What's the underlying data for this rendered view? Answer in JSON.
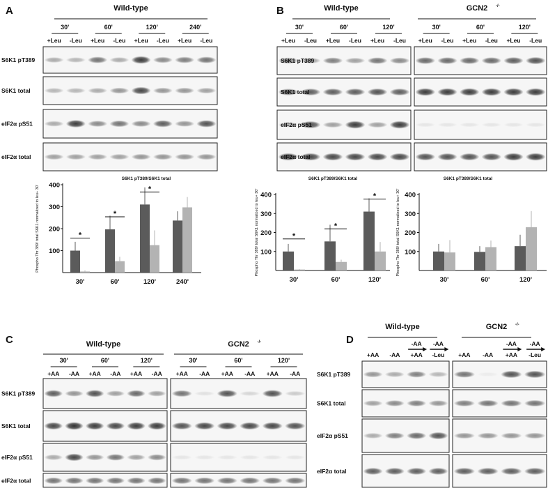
{
  "colors": {
    "plus_bar": "#5b5b5b",
    "minus_bar": "#b3b3b3",
    "band": "#1a1a1a"
  },
  "panels": {
    "A": {
      "label": "A",
      "groups": [
        {
          "title": "Wild-type",
          "times": [
            "30'",
            "60'",
            "120'",
            "240'"
          ],
          "lanes": [
            "+Leu",
            "-Leu",
            "+Leu",
            "-Leu",
            "+Leu",
            "-Leu",
            "+Leu",
            "-Leu"
          ],
          "band_intensity": [
            [
              0.35,
              0.3,
              0.6,
              0.35,
              0.85,
              0.5,
              0.55,
              0.6
            ],
            [
              0.3,
              0.3,
              0.35,
              0.45,
              0.8,
              0.45,
              0.45,
              0.4
            ],
            [
              0.35,
              0.85,
              0.5,
              0.6,
              0.5,
              0.7,
              0.45,
              0.75
            ],
            [
              0.4,
              0.4,
              0.4,
              0.4,
              0.45,
              0.45,
              0.45,
              0.45
            ]
          ]
        }
      ],
      "rows": [
        "S6K1 pT389",
        "S6K1 total",
        "eIF2α pS51",
        "eIF2α total"
      ]
    },
    "B": {
      "label": "B",
      "groups": [
        {
          "title": "Wild-type",
          "times": [
            "30'",
            "60'",
            "120'"
          ],
          "lanes": [
            "+Leu",
            "-Leu",
            "+Leu",
            "-Leu",
            "+Leu",
            "-Leu"
          ],
          "band_intensity": [
            [
              0.5,
              0.4,
              0.55,
              0.4,
              0.6,
              0.5
            ],
            [
              0.65,
              0.7,
              0.7,
              0.7,
              0.75,
              0.7
            ],
            [
              0.3,
              0.75,
              0.4,
              0.85,
              0.4,
              0.85
            ],
            [
              0.8,
              0.8,
              0.8,
              0.8,
              0.8,
              0.8
            ]
          ]
        },
        {
          "title": "GCN2",
          "title_sup": "-/-",
          "times": [
            "30'",
            "60'",
            "120'"
          ],
          "lanes": [
            "+Leu",
            "-Leu",
            "+Leu",
            "-Leu",
            "+Leu",
            "-Leu"
          ],
          "band_intensity": [
            [
              0.65,
              0.65,
              0.65,
              0.65,
              0.7,
              0.75
            ],
            [
              0.85,
              0.85,
              0.85,
              0.85,
              0.85,
              0.85
            ],
            [
              0.08,
              0.08,
              0.08,
              0.08,
              0.08,
              0.08
            ],
            [
              0.75,
              0.75,
              0.75,
              0.75,
              0.85,
              0.85
            ]
          ]
        }
      ],
      "rows": [
        "S6K1 pT389",
        "S6K1 total",
        "eIF2α pS51",
        "eIF2α total"
      ]
    },
    "C": {
      "label": "C",
      "groups": [
        {
          "title": "Wild-type",
          "times": [
            "30'",
            "60'",
            "120'"
          ],
          "lanes": [
            "+AA",
            "-AA",
            "+AA",
            "-AA",
            "+AA",
            "-AA"
          ],
          "band_intensity": [
            [
              0.7,
              0.45,
              0.75,
              0.4,
              0.65,
              0.4
            ],
            [
              0.8,
              0.9,
              0.85,
              0.8,
              0.85,
              0.85
            ],
            [
              0.35,
              0.8,
              0.45,
              0.6,
              0.4,
              0.5
            ],
            [
              0.6,
              0.6,
              0.6,
              0.6,
              0.6,
              0.6
            ]
          ]
        },
        {
          "title": "GCN2",
          "title_sup": "-/-",
          "times": [
            "30'",
            "60'",
            "120'"
          ],
          "lanes": [
            "+AA",
            "-AA",
            "+AA",
            "-AA",
            "+AA",
            "-AA"
          ],
          "band_intensity": [
            [
              0.6,
              0.1,
              0.75,
              0.15,
              0.75,
              0.2
            ],
            [
              0.75,
              0.8,
              0.8,
              0.8,
              0.8,
              0.75
            ],
            [
              0.08,
              0.08,
              0.08,
              0.08,
              0.08,
              0.08
            ],
            [
              0.6,
              0.6,
              0.6,
              0.6,
              0.6,
              0.6
            ]
          ]
        }
      ],
      "rows": [
        "S6K1 pT389",
        "S6K1 total",
        "eIF2α pS51",
        "eIF2α total"
      ]
    },
    "D": {
      "label": "D",
      "groups": [
        {
          "title": "Wild-type",
          "lanes": [
            "+AA",
            "-AA",
            "+AA",
            "-Leu"
          ],
          "lanes_top": [
            "",
            "",
            "-AA",
            "-AA"
          ],
          "band_intensity": [
            [
              0.45,
              0.35,
              0.55,
              0.3
            ],
            [
              0.4,
              0.5,
              0.55,
              0.45
            ],
            [
              0.35,
              0.55,
              0.65,
              0.75
            ],
            [
              0.7,
              0.7,
              0.7,
              0.7
            ]
          ]
        },
        {
          "title": "GCN2",
          "title_sup": "-/-",
          "lanes": [
            "+AA",
            "-AA",
            "+AA",
            "-Leu"
          ],
          "lanes_top": [
            "",
            "",
            "-AA",
            "-AA"
          ],
          "band_intensity": [
            [
              0.6,
              0.05,
              0.75,
              0.75
            ],
            [
              0.55,
              0.6,
              0.6,
              0.6
            ],
            [
              0.45,
              0.45,
              0.45,
              0.45
            ],
            [
              0.7,
              0.7,
              0.7,
              0.7
            ]
          ]
        }
      ],
      "rows": [
        "S6K1 pT389",
        "S6K1 total",
        "eIF2α pS51",
        "eIF2α total"
      ]
    }
  },
  "chart_data": [
    {
      "type": "bar",
      "panel": "A",
      "title": "S6K1 pT389/S6K1 total",
      "ylabel": "Phospho Thr 389/ total S6K1 normalized to leu+ 30'",
      "categories": [
        "30'",
        "60'",
        "120'",
        "240'"
      ],
      "ylim": [
        0,
        400
      ],
      "yticks": [
        "100",
        "200",
        "300",
        "400"
      ],
      "series": [
        {
          "values": [
            100,
            197,
            310,
            237
          ],
          "errors": [
            40,
            62,
            78,
            42
          ]
        },
        {
          "values": [
            5,
            52,
            125,
            297
          ],
          "errors": [
            5,
            20,
            67,
            47
          ]
        }
      ],
      "significance": [
        "*",
        "*",
        "*",
        ""
      ]
    },
    {
      "type": "bar",
      "panel": "B-wild-type",
      "title": "S6K1 pT389/S6K1 total",
      "ylabel": "Phospho Thr 389/ total S6K1 normalized to leu+ 30'",
      "categories": [
        "30'",
        "60'",
        "120'"
      ],
      "ylim": [
        0,
        400
      ],
      "yticks": [
        "100",
        "200",
        "300",
        "400"
      ],
      "series": [
        {
          "values": [
            100,
            153,
            310
          ],
          "errors": [
            40,
            88,
            70
          ]
        },
        {
          "values": [
            5,
            45,
            100
          ],
          "errors": [
            3,
            12,
            50
          ]
        }
      ],
      "significance": [
        "*",
        "*",
        "*"
      ]
    },
    {
      "type": "bar",
      "panel": "B-GCN2",
      "title": "S6K1 pT389/S6K1 total",
      "ylabel": "Phospho Thr 389/ total S6K1 normalized to leu+ 30'",
      "categories": [
        "30'",
        "60'",
        "120'"
      ],
      "ylim": [
        0,
        400
      ],
      "yticks": [
        "100",
        "200",
        "300",
        "400"
      ],
      "series": [
        {
          "values": [
            100,
            98,
            128
          ],
          "errors": [
            40,
            30,
            60
          ]
        },
        {
          "values": [
            95,
            123,
            228
          ],
          "errors": [
            65,
            35,
            85
          ]
        }
      ],
      "significance": [
        "",
        "",
        ""
      ]
    }
  ]
}
